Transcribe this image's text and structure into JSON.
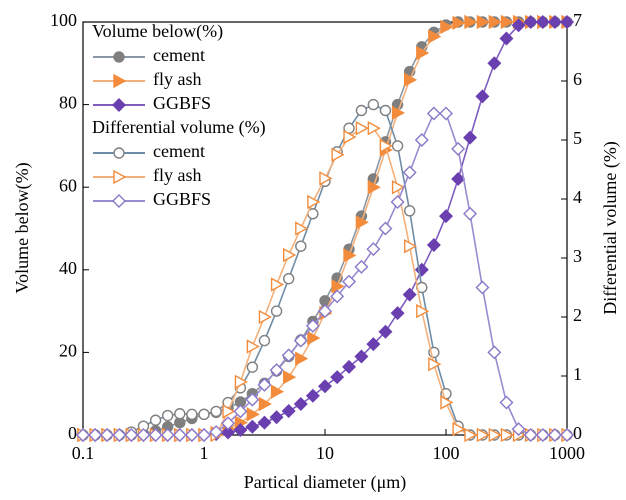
{
  "chart_data": {
    "type": "line",
    "xlabel": "Partical diameter (μm)",
    "ylabel": "Volume below(%)",
    "y2label": "Differential volume (%)",
    "xscale": "log",
    "xlim": [
      0.1,
      1000
    ],
    "xticks": [
      0.1,
      1,
      10,
      100,
      1000
    ],
    "ylim": [
      0,
      100
    ],
    "yticks": [
      0,
      20,
      40,
      60,
      80,
      100
    ],
    "y2lim": [
      0,
      7
    ],
    "y2ticks": [
      0,
      1,
      2,
      3,
      4,
      5,
      6,
      7
    ],
    "legend_groups": [
      "Volume below(%)",
      "Differential volume (%)"
    ],
    "legend": "upper left",
    "x": [
      0.1,
      0.126,
      0.158,
      0.2,
      0.251,
      0.316,
      0.398,
      0.501,
      0.631,
      0.794,
      1,
      1.26,
      1.58,
      2,
      2.51,
      3.16,
      3.98,
      5.01,
      6.31,
      7.94,
      10,
      12.6,
      15.8,
      20,
      25.1,
      31.6,
      39.8,
      50.1,
      63.1,
      79.4,
      100,
      126,
      158,
      200,
      251,
      316,
      398,
      501,
      631,
      794,
      1000
    ],
    "series": [
      {
        "name": "cement",
        "color": "#7f7f7f",
        "line_color": "#8a96a3",
        "marker": "circle",
        "filled": true,
        "axis": "y",
        "values": [
          0,
          0,
          0,
          0,
          0,
          0.3,
          1,
          2,
          3,
          4,
          5,
          5.5,
          6.5,
          8,
          10,
          12.5,
          15.5,
          19,
          23,
          27.5,
          32.5,
          38,
          45,
          53,
          62,
          71,
          80,
          88,
          94,
          97.5,
          99.3,
          100,
          100,
          100,
          100,
          100,
          100,
          100,
          100,
          100,
          100
        ]
      },
      {
        "name": "fly ash",
        "color": "#f28c3c",
        "line_color": "#f4b07a",
        "marker": "triangle",
        "filled": true,
        "axis": "y",
        "values": [
          0,
          0,
          0,
          0,
          0,
          0,
          0,
          0,
          0,
          0,
          0,
          0.5,
          1.5,
          3,
          5,
          7.5,
          10.5,
          14,
          18.5,
          23.5,
          29.5,
          36,
          43.5,
          51.5,
          60,
          69,
          78,
          86,
          92.5,
          96.5,
          98.8,
          99.8,
          100,
          100,
          100,
          100,
          100,
          100,
          100,
          100,
          100
        ]
      },
      {
        "name": "GGBFS",
        "color": "#6a3fb0",
        "line_color": "#7f5cc0",
        "marker": "diamond",
        "filled": true,
        "axis": "y",
        "values": [
          0,
          0,
          0,
          0,
          0,
          0,
          0,
          0,
          0,
          0,
          0,
          0.2,
          0.6,
          1.2,
          2,
          3,
          4.3,
          5.8,
          7.5,
          9.5,
          11.8,
          14,
          16.5,
          19,
          22,
          25,
          29.5,
          34,
          40,
          46,
          53,
          62,
          72,
          82,
          90,
          96,
          99.2,
          100,
          100,
          100,
          100
        ]
      },
      {
        "name": "cement",
        "color": "#7f7f7f",
        "line_color": "#6f8ca6",
        "marker": "circle",
        "filled": false,
        "axis": "y2",
        "values": [
          0,
          0,
          0,
          0,
          0.05,
          0.15,
          0.25,
          0.33,
          0.36,
          0.35,
          0.35,
          0.4,
          0.55,
          0.8,
          1.15,
          1.6,
          2.1,
          2.65,
          3.2,
          3.75,
          4.3,
          4.8,
          5.2,
          5.5,
          5.6,
          5.5,
          4.9,
          3.8,
          2.5,
          1.4,
          0.7,
          0.15,
          0,
          0,
          0,
          0,
          0,
          0,
          0,
          0,
          0
        ]
      },
      {
        "name": "fly ash",
        "color": "#f28c3c",
        "line_color": "#f4b07a",
        "marker": "triangle",
        "filled": false,
        "axis": "y2",
        "values": [
          0,
          0,
          0,
          0,
          0,
          0,
          0,
          0,
          0,
          0,
          0,
          0,
          0.4,
          0.9,
          1.5,
          2,
          2.55,
          3.05,
          3.5,
          3.95,
          4.35,
          4.75,
          5.05,
          5.2,
          5.2,
          4.9,
          4.2,
          3.2,
          2.1,
          1.2,
          0.55,
          0.1,
          0,
          0,
          0,
          0,
          0,
          0,
          0,
          0,
          0
        ]
      },
      {
        "name": "GGBFS",
        "color": "#8a78c8",
        "line_color": "#9a8ad0",
        "marker": "diamond",
        "filled": false,
        "axis": "y2",
        "values": [
          0,
          0,
          0,
          0,
          0,
          0,
          0,
          0,
          0,
          0,
          0,
          0.05,
          0.2,
          0.4,
          0.6,
          0.85,
          1.1,
          1.35,
          1.6,
          1.85,
          2.1,
          2.35,
          2.6,
          2.85,
          3.15,
          3.5,
          3.95,
          4.45,
          5,
          5.45,
          5.45,
          4.85,
          3.75,
          2.5,
          1.4,
          0.55,
          0.1,
          0,
          0,
          0,
          0
        ]
      }
    ]
  }
}
